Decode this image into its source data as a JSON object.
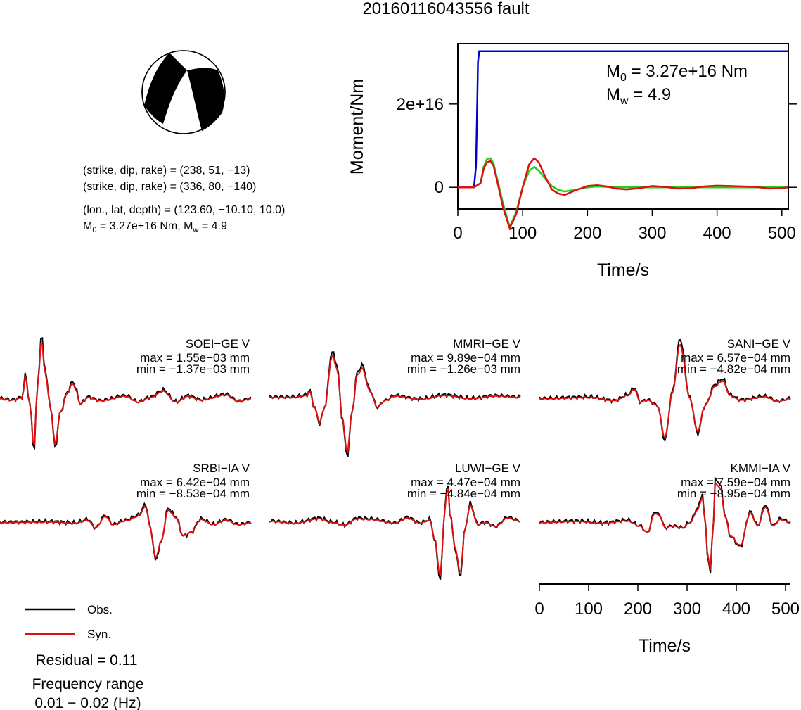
{
  "figure": {
    "title": "20160116043556 fault"
  },
  "mechanism": {
    "lines": [
      "(strike, dip, rake) = (238, 51, −13)",
      "(strike, dip, rake) = (336, 80, −140)",
      "(lon., lat, depth) = (123.60, −10.10, 10.0)"
    ],
    "m0_prefix": "M",
    "m0_sub": "0",
    "m0_value": " = 3.27e+16 Nm, M",
    "mw_sub": "w",
    "mw_value": " = 4.9"
  },
  "legend": {
    "obs_label": "Obs.",
    "syn_label": "Syn.",
    "obs_color": "#000000",
    "syn_color": "#dd1111"
  },
  "residual": "Residual = 0.11",
  "frequency": {
    "label": "Frequency range",
    "value": "0.01 − 0.02 (Hz)"
  },
  "chart_data": [
    {
      "type": "line",
      "name": "moment-rate",
      "xlabel": "Time/s",
      "ylabel": "Moment/Nm",
      "xlim": [
        0,
        510
      ],
      "ylim": [
        -5200000000000000.0,
        3.45e+16
      ],
      "xticks": [
        0,
        100,
        200,
        300,
        400,
        500
      ],
      "yticks": [
        {
          "value": 0,
          "label": "0"
        },
        {
          "value": 2e+16,
          "label": "2e+16"
        }
      ],
      "annotation": {
        "m_letter": "M",
        "m0_sub": "0",
        "m0_text": " = 3.27e+16 Nm",
        "mw_sub": "w",
        "mw_text": " = 4.9"
      },
      "series": [
        {
          "color": "#0000cc",
          "x": [
            0,
            25,
            28,
            30,
            31,
            33,
            510
          ],
          "y": [
            0,
            0,
            5000000000000000.0,
            2e+16,
            3e+16,
            3.27e+16,
            3.27e+16
          ]
        },
        {
          "color": "#22cc22",
          "x": [
            0,
            25,
            35,
            40,
            45,
            50,
            55,
            60,
            70,
            80,
            90,
            100,
            110,
            118,
            125,
            135,
            145,
            155,
            165,
            180,
            200,
            215,
            230,
            260,
            300,
            350,
            400,
            450,
            510
          ],
          "y": [
            0,
            0,
            1000000000000000.0,
            5000000000000000.0,
            6800000000000000.0,
            7000000000000000.0,
            5800000000000000.0,
            2500000000000000.0,
            -4000000000000000.0,
            -9500000000000000.0,
            -6000000000000000.0,
            0,
            4000000000000000.0,
            4900000000000000.0,
            4000000000000000.0,
            2000000000000000.0,
            300000000000000.0,
            -600000000000000.0,
            -1000000000000000.0,
            -600000000000000.0,
            0.0,
            200000000000000.0,
            100000000000000.0,
            0,
            0,
            0,
            0,
            0,
            0
          ]
        },
        {
          "color": "#dd1111",
          "x": [
            0,
            25,
            35,
            40,
            45,
            50,
            55,
            60,
            70,
            80,
            90,
            100,
            110,
            118,
            125,
            135,
            145,
            155,
            165,
            180,
            200,
            215,
            230,
            245,
            260,
            280,
            300,
            320,
            340,
            360,
            380,
            400,
            420,
            440,
            460,
            480,
            500,
            510
          ],
          "y": [
            0,
            0,
            1000000000000000.0,
            4500000000000000.0,
            6000000000000000.0,
            6300000000000000.0,
            5200000000000000.0,
            2000000000000000.0,
            -5000000000000000.0,
            -9800000000000000.0,
            -6500000000000000.0,
            0,
            5500000000000000.0,
            7000000000000000.0,
            6000000000000000.0,
            2500000000000000.0,
            -500000000000000.0,
            -1500000000000000.0,
            -1800000000000000.0,
            -800000000000000.0,
            300000000000000.0,
            500000000000000.0,
            200000000000000.0,
            -300000000000000.0,
            -500000000000000.0,
            -200000000000000.0,
            300000000000000.0,
            100000000000000.0,
            -300000000000000.0,
            -200000000000000.0,
            200000000000000.0,
            400000000000000.0,
            300000000000000.0,
            200000000000000.0,
            100000000000000.0,
            -300000000000000.0,
            -200000000000000.0,
            0
          ]
        }
      ]
    },
    {
      "type": "line",
      "name": "waveforms",
      "xlabel": "Time/s",
      "xlim": [
        0,
        510
      ],
      "xticks": [
        0,
        100,
        200,
        300,
        400,
        500
      ],
      "stations": [
        {
          "name": "SOEI−GE V",
          "max": "max = 1.55e−03 mm",
          "min": "min = −1.37e−03 mm"
        },
        {
          "name": "MMRI−GE V",
          "max": "max = 9.89e−04 mm",
          "min": "min = −1.26e−03 mm"
        },
        {
          "name": "SANI−GE V",
          "max": "max = 6.57e−04 mm",
          "min": "min = −4.82e−04 mm"
        },
        {
          "name": "SRBI−IA V",
          "max": "max = 6.42e−04 mm",
          "min": "min = −8.53e−04 mm"
        },
        {
          "name": "LUWI−GE V",
          "max": "max = 4.47e−04 mm",
          "min": "min = −4.84e−04 mm"
        },
        {
          "name": "KMMI−IA V",
          "max": "max = 7.59e−04 mm",
          "min": "min = −8.95e−04 mm"
        }
      ]
    }
  ]
}
